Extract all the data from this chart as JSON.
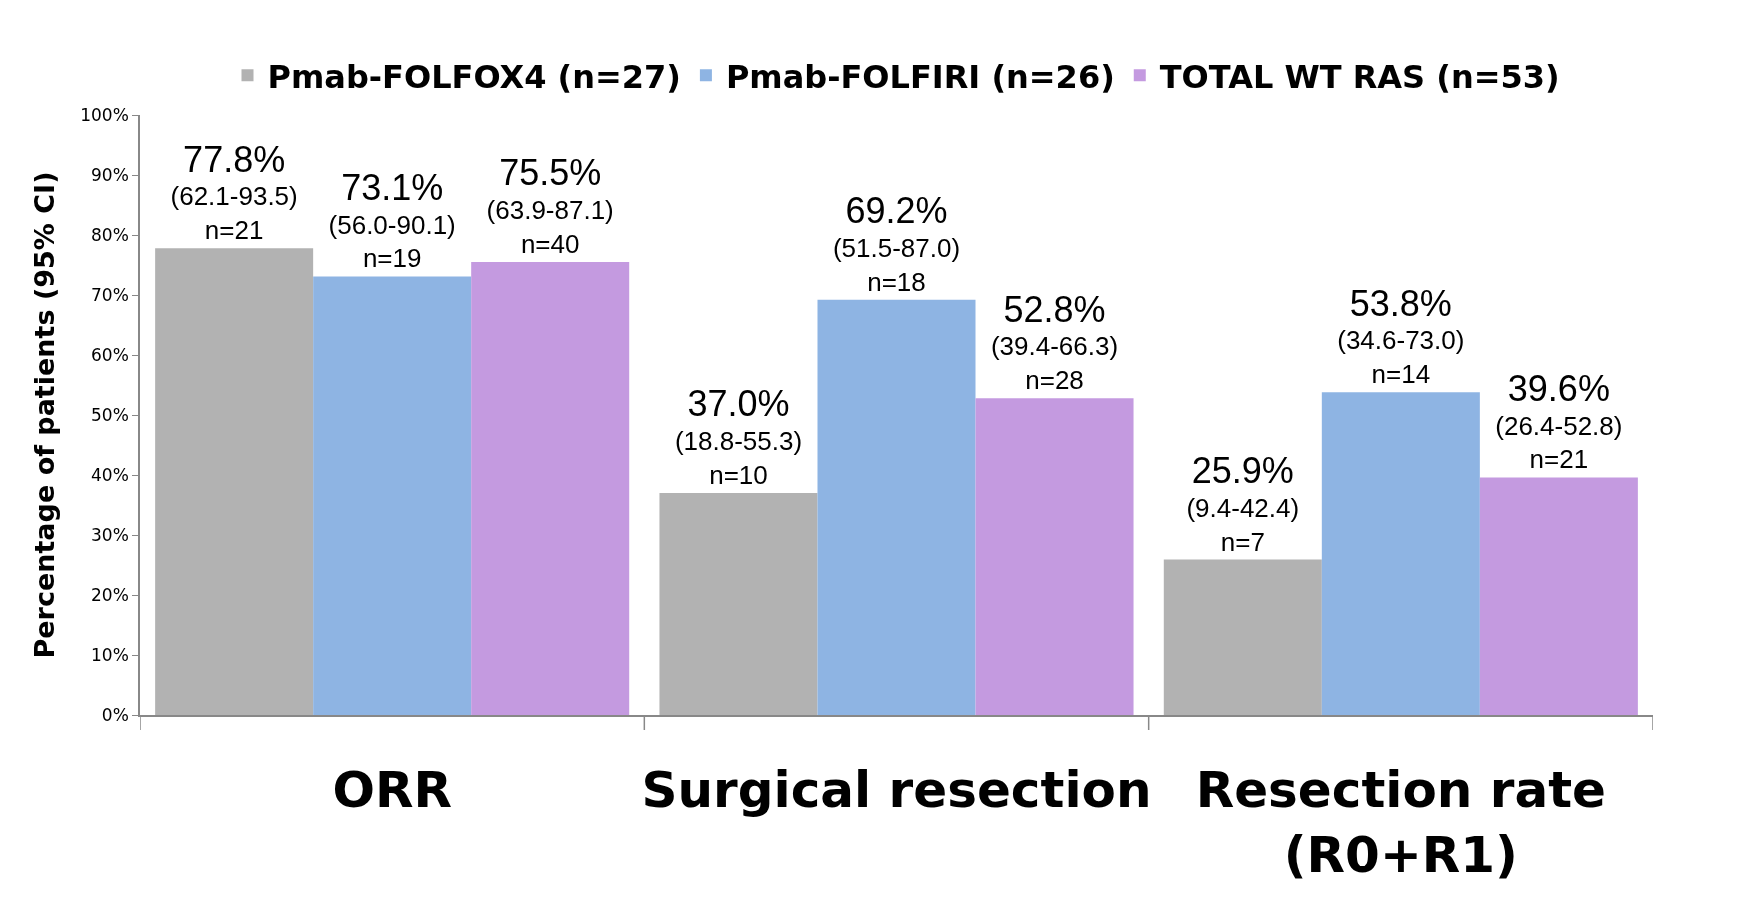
{
  "chart_data": {
    "type": "bar",
    "ylabel": "Percentage of patients (95% CI)",
    "categories": [
      "ORR",
      "Surgical resection",
      "Resection rate\n(R0+R1)"
    ],
    "series": [
      {
        "name": "Pmab-FOLFOX4 (n=27)",
        "color": "#b2b2b2",
        "values": [
          77.8,
          37.0,
          25.9
        ],
        "value_labels": [
          "77.8%\n(62.1-93.5)\nn=21",
          "37.0%\n(18.8-55.3)\nn=10",
          "25.9%\n(9.4-42.4)\nn=7"
        ]
      },
      {
        "name": "Pmab-FOLFIRI (n=26)",
        "color": "#8eb4e3",
        "values": [
          73.1,
          69.2,
          53.8
        ],
        "value_labels": [
          "73.1%\n(56.0-90.1)\nn=19",
          "69.2%\n(51.5-87.0)\nn=18",
          "53.8%\n(34.6-73.0)\nn=14"
        ]
      },
      {
        "name": "TOTAL WT RAS (n=53)",
        "color": "#c49ae0",
        "values": [
          75.5,
          52.8,
          39.6
        ],
        "value_labels": [
          "75.5%\n(63.9-87.1)\nn=40",
          "52.8%\n(39.4-66.3)\nn=28",
          "39.6%\n(26.4-52.8)\nn=21"
        ]
      }
    ],
    "ylim": [
      0,
      100
    ],
    "yticks": [
      {
        "value": 0,
        "label": "0%"
      },
      {
        "value": 10,
        "label": "10%"
      },
      {
        "value": 20,
        "label": "20%"
      },
      {
        "value": 30,
        "label": "30%"
      },
      {
        "value": 40,
        "label": "40%"
      },
      {
        "value": 50,
        "label": "50%"
      },
      {
        "value": 60,
        "label": "60%"
      },
      {
        "value": 70,
        "label": "70%"
      },
      {
        "value": 80,
        "label": "80%"
      },
      {
        "value": 90,
        "label": "90%"
      },
      {
        "value": 100,
        "label": "100%"
      }
    ],
    "grid": false,
    "legend": "top"
  }
}
